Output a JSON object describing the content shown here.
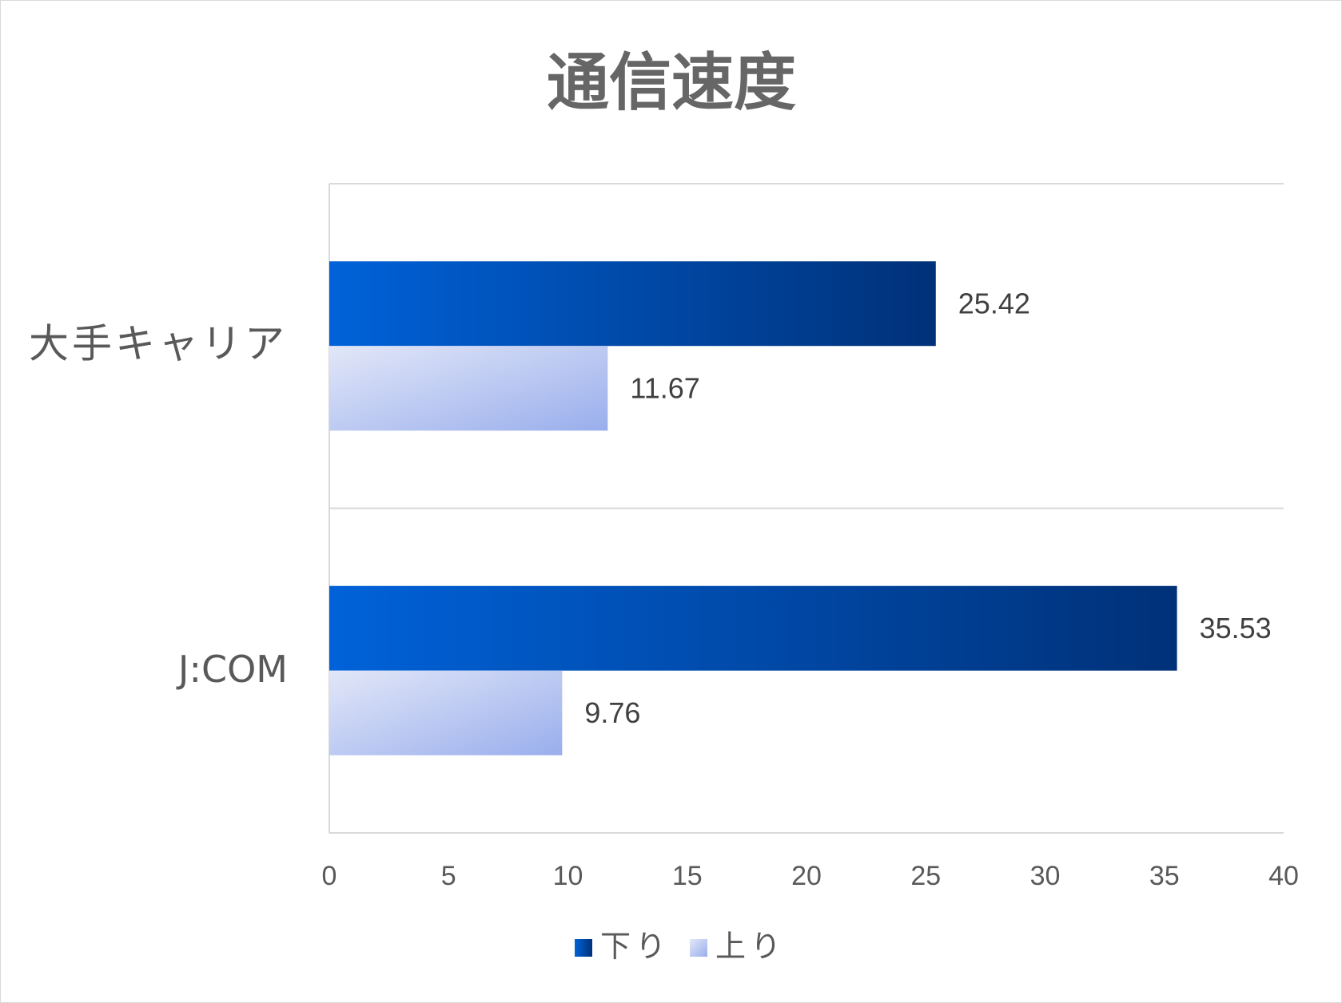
{
  "chart_data": {
    "type": "bar",
    "orientation": "horizontal",
    "title": "通信速度",
    "categories": [
      "大手キャリア",
      "J:COM"
    ],
    "series": [
      {
        "name": "下り",
        "values": [
          25.42,
          35.53
        ]
      },
      {
        "name": "上り",
        "values": [
          11.67,
          9.76
        ]
      }
    ],
    "xlim": [
      0,
      40
    ],
    "x_ticks": [
      0,
      5,
      10,
      15,
      20,
      25,
      30,
      35,
      40
    ],
    "data_labels": true,
    "gridlines": "category separators",
    "legend_position": "bottom"
  },
  "colors": {
    "down_gradient": [
      "#0062d9",
      "#003178"
    ],
    "up_gradient": [
      "#e2e7f8",
      "#99aeec"
    ],
    "axis": "#d9d9d9"
  }
}
